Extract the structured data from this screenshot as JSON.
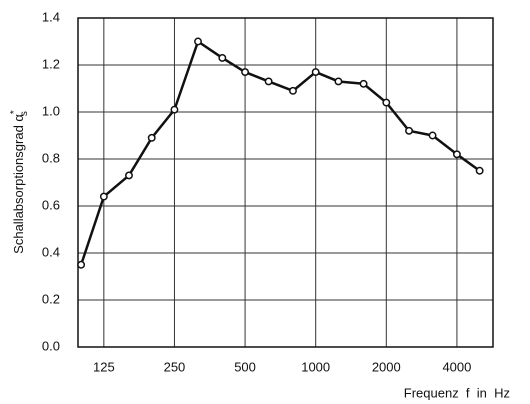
{
  "chart_data": {
    "type": "line",
    "xlabel": "Frequenz  f  in  Hz",
    "ylabel": {
      "text": "Schallabsorptionsgrad α",
      "superscript": "*",
      "subscript": "s"
    },
    "x": [
      100,
      125,
      160,
      200,
      250,
      315,
      400,
      500,
      630,
      800,
      1000,
      1250,
      1600,
      2000,
      2500,
      3150,
      4000,
      5000
    ],
    "series": [
      {
        "color": "#111111",
        "values": [
          0.35,
          0.64,
          0.73,
          0.89,
          1.01,
          1.3,
          1.23,
          1.17,
          1.13,
          1.09,
          1.17,
          1.13,
          1.12,
          1.04,
          0.92,
          0.9,
          0.82,
          0.75
        ]
      }
    ],
    "xscale": "log",
    "xlim": [
      97,
      5700
    ],
    "xticks": [
      125,
      250,
      500,
      1000,
      2000,
      4000
    ],
    "ylim": [
      0,
      1.4
    ],
    "yticks": [
      {
        "value": 0,
        "label": "0.0"
      },
      0.2,
      0.4,
      0.6,
      0.8,
      {
        "value": 1,
        "label": "1.0"
      },
      1.2,
      1.4
    ],
    "grid": true
  }
}
